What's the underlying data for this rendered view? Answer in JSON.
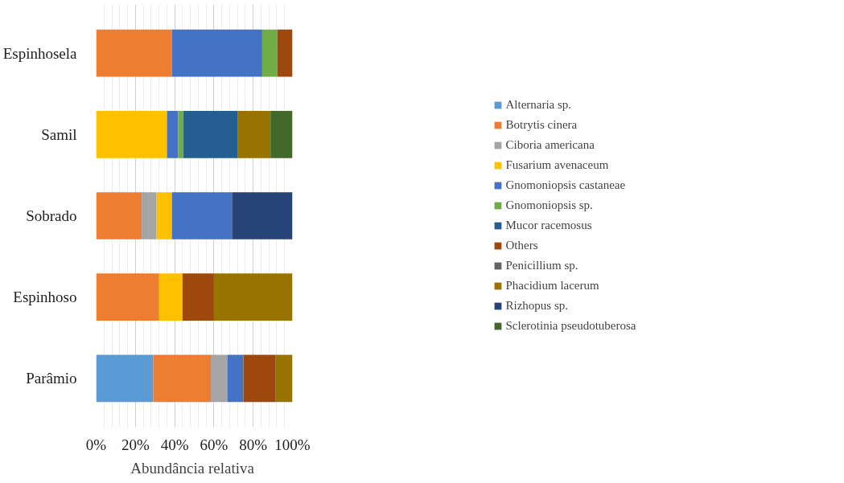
{
  "chart_data": {
    "type": "bar",
    "orientation": "horizontal",
    "stacked": true,
    "xlabel": "Abundância  relativa",
    "categories": [
      "Espinhosela",
      "Samil",
      "Sobrado",
      "Espinhoso",
      "Parâmio"
    ],
    "series": [
      {
        "name": "Alternaria sp.",
        "color": "#5b9bd5",
        "values": [
          0,
          0,
          0,
          0,
          29.1
        ]
      },
      {
        "name": "Botrytis cinera",
        "color": "#ed7d31",
        "values": [
          38.6,
          0,
          23.2,
          32.1,
          29.3
        ]
      },
      {
        "name": "Ciboria americana",
        "color": "#a5a5a5",
        "values": [
          0,
          0,
          7.6,
          0,
          8.4
        ]
      },
      {
        "name": "Fusarium avenaceum",
        "color": "#ffc000",
        "values": [
          0,
          36.1,
          7.8,
          11.9,
          0
        ]
      },
      {
        "name": "Gnomoniopsis castaneae",
        "color": "#4472c4",
        "values": [
          46.0,
          5.7,
          30.6,
          0,
          8.2
        ]
      },
      {
        "name": "Gnomoniopsis sp.",
        "color": "#70ad47",
        "values": [
          7.7,
          2.7,
          0,
          0,
          0
        ]
      },
      {
        "name": "Mucor racemosus",
        "color": "#255e91",
        "values": [
          0,
          27.7,
          0,
          0,
          0
        ]
      },
      {
        "name": "Others",
        "color": "#9e480e",
        "values": [
          7.7,
          0,
          0,
          16.0,
          16.5
        ]
      },
      {
        "name": "Penicillium sp.",
        "color": "#636363",
        "values": [
          0,
          0,
          0,
          0,
          0
        ]
      },
      {
        "name": "Phacidium lacerum",
        "color": "#997300",
        "values": [
          0,
          16.6,
          0,
          40.0,
          8.5
        ]
      },
      {
        "name": "Rizhopus sp.",
        "color": "#264478",
        "values": [
          0,
          0,
          30.8,
          0,
          0
        ]
      },
      {
        "name": "Sclerotinia pseudotuberosa",
        "color": "#43682b",
        "values": [
          0,
          11.2,
          0,
          0,
          0
        ]
      }
    ],
    "xlim": [
      0,
      100
    ],
    "xticks": [
      {
        "value": 0,
        "label": "0%"
      },
      {
        "value": 20,
        "label": "20%"
      },
      {
        "value": 40,
        "label": "40%"
      },
      {
        "value": 60,
        "label": "60%"
      },
      {
        "value": 80,
        "label": "80%"
      },
      {
        "value": 100,
        "label": "100%"
      }
    ],
    "grid": "x",
    "legend": "right"
  }
}
